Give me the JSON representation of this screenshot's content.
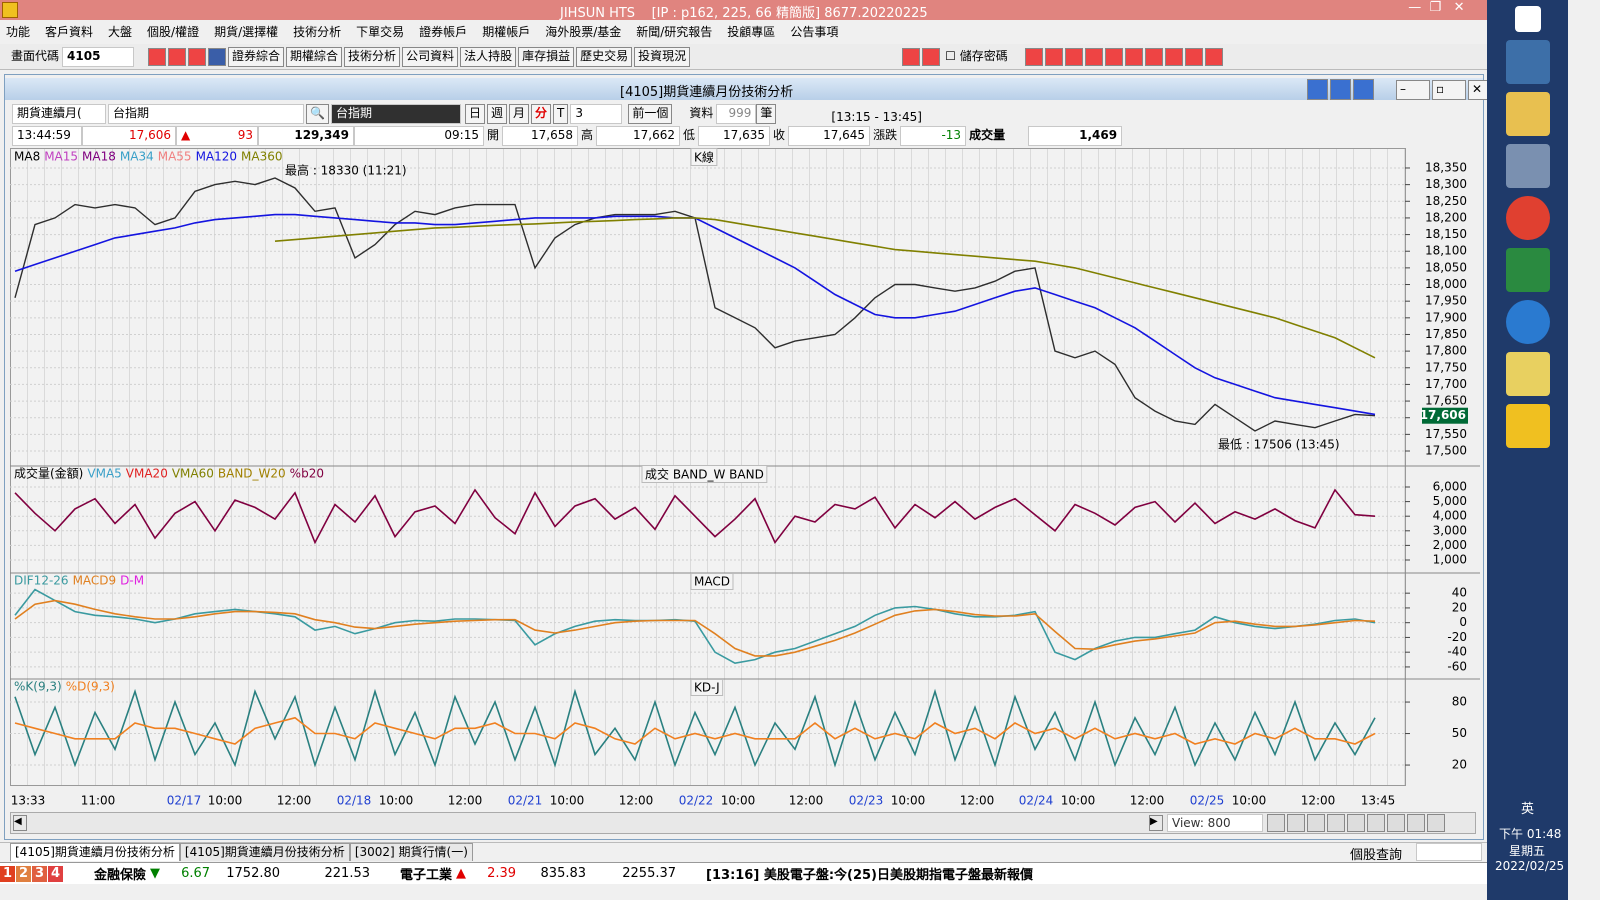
{
  "window": {
    "title": "JIHSUN HTS",
    "info": "[IP : p162, 225, 66 精簡版] 8677.20220225"
  },
  "menu": [
    "功能",
    "客戶資料",
    "大盤",
    "個股/權證",
    "期貨/選擇權",
    "技術分析",
    "下單交易",
    "證券帳戶",
    "期權帳戶",
    "海外股票/基金",
    "新聞/研究報告",
    "投顧專區",
    "公告事項"
  ],
  "toolbar": {
    "code_label": "畫面代碼",
    "code": "4105",
    "buttons": [
      "證券綜合",
      "期權綜合",
      "技術分析",
      "公司資料",
      "法人持股",
      "庫存損益",
      "歷史交易",
      "投資現況"
    ],
    "save_password": "儲存密碼"
  },
  "panel": {
    "title": "[4105]期貨連續月份技術分析",
    "selector": "期貨連續月(",
    "symbol": "台指期",
    "symbol_name": "台指期",
    "periods": [
      "日",
      "週",
      "月",
      "分",
      "T"
    ],
    "interval": "3",
    "prev": "前一個",
    "data_label": "資料",
    "data_count": "999",
    "data_unit": "筆",
    "range": "[13:15 - 13:45]"
  },
  "quote": {
    "time": "13:44:59",
    "price": "17,606",
    "arrow": "▲",
    "change": "93",
    "volume": "129,349",
    "open_time": "09:15",
    "open_label": "開",
    "open": "17,658",
    "high_label": "高",
    "high": "17,662",
    "low_label": "低",
    "low": "17,635",
    "close_label": "收",
    "close": "17,645",
    "change_label": "漲跌",
    "tick_change": "-13",
    "volume_label": "成交量",
    "tick_volume": "1,469"
  },
  "chart_data": [
    {
      "type": "line",
      "label": "K線",
      "series": [
        {
          "color": "#2e2e2e",
          "values": [
            17960,
            18180,
            18200,
            18240,
            18230,
            18240,
            18230,
            18180,
            18200,
            18280,
            18300,
            18310,
            18300,
            18320,
            18290,
            18220,
            18230,
            18080,
            18120,
            18180,
            18220,
            18210,
            18230,
            18240,
            18240,
            18240,
            18050,
            18140,
            18180,
            18200,
            18210,
            18210,
            18210,
            18220,
            18200,
            17930,
            17900,
            17870,
            17810,
            17830,
            17840,
            17850,
            17900,
            17960,
            18000,
            18000,
            17990,
            17980,
            17990,
            18010,
            18040,
            18050,
            17800,
            17780,
            17800,
            17760,
            17660,
            17620,
            17590,
            17580,
            17640,
            17600,
            17560,
            17590,
            17580,
            17570,
            17590,
            17610,
            17606
          ]
        },
        {
          "name": "MA8",
          "color": "#000000"
        },
        {
          "name": "MA15",
          "color": "#c040c0"
        },
        {
          "name": "MA18",
          "color": "#800080"
        },
        {
          "name": "MA34",
          "color": "#3aa0c8"
        },
        {
          "name": "MA55",
          "color": "#f08080"
        },
        {
          "name": "MA120",
          "color": "#1414e0",
          "values": [
            18040,
            18060,
            18080,
            18100,
            18120,
            18140,
            18150,
            18160,
            18170,
            18185,
            18195,
            18200,
            18205,
            18210,
            18210,
            18205,
            18200,
            18195,
            18190,
            18185,
            18185,
            18180,
            18180,
            18185,
            18190,
            18195,
            18200,
            18200,
            18200,
            18200,
            18205,
            18205,
            18205,
            18200,
            18200,
            18170,
            18140,
            18110,
            18080,
            18050,
            18010,
            17970,
            17940,
            17910,
            17900,
            17900,
            17910,
            17920,
            17940,
            17960,
            17980,
            17990,
            17970,
            17950,
            17930,
            17900,
            17870,
            17830,
            17790,
            17750,
            17720,
            17700,
            17680,
            17660,
            17650,
            17640,
            17630,
            17620,
            17610
          ]
        },
        {
          "name": "MA360",
          "color": "#808000",
          "values": [
            null,
            null,
            null,
            null,
            null,
            null,
            null,
            null,
            null,
            null,
            null,
            null,
            null,
            18130,
            18135,
            18140,
            18145,
            18150,
            18155,
            18160,
            18165,
            18170,
            18172,
            18175,
            18178,
            18180,
            18182,
            18185,
            18188,
            18190,
            18192,
            18195,
            18197,
            18200,
            18200,
            18195,
            18185,
            18175,
            18165,
            18155,
            18145,
            18135,
            18125,
            18115,
            18105,
            18100,
            18095,
            18090,
            18085,
            18080,
            18075,
            18070,
            18060,
            18050,
            18035,
            18020,
            18005,
            17990,
            17975,
            17960,
            17945,
            17930,
            17915,
            17900,
            17880,
            17860,
            17840,
            17810,
            17780
          ]
        }
      ],
      "annotations": [
        "最高 : 18330 (11:21)",
        "最低 : 17506 (13:45)"
      ],
      "last_value": {
        "value": 17606,
        "label": "17,606"
      },
      "ylim": [
        17458,
        18404
      ],
      "yticks": [
        {
          "value": 18350,
          "label": "18,350"
        },
        {
          "value": 18300,
          "label": "18,300"
        },
        {
          "value": 18250,
          "label": "18,250"
        },
        {
          "value": 18200,
          "label": "18,200"
        },
        {
          "value": 18150,
          "label": "18,150"
        },
        {
          "value": 18100,
          "label": "18,100"
        },
        {
          "value": 18050,
          "label": "18,050"
        },
        {
          "value": 18000,
          "label": "18,000"
        },
        {
          "value": 17950,
          "label": "17,950"
        },
        {
          "value": 17900,
          "label": "17,900"
        },
        {
          "value": 17850,
          "label": "17,850"
        },
        {
          "value": 17800,
          "label": "17,800"
        },
        {
          "value": 17750,
          "label": "17,750"
        },
        {
          "value": 17700,
          "label": "17,700"
        },
        {
          "value": 17650,
          "label": "17,650"
        },
        {
          "value": 17600,
          "label": "17,600"
        },
        {
          "value": 17550,
          "label": "17,550"
        },
        {
          "value": 17500,
          "label": "17,500"
        }
      ]
    },
    {
      "type": "line",
      "label": "成交  BAND_W  BAND",
      "series": [
        {
          "name": "成交量(金額)",
          "color": "#000000"
        },
        {
          "name": "VMA5",
          "color": "#3aa0c8"
        },
        {
          "name": "VMA20",
          "color": "#e02020"
        },
        {
          "name": "VMA60",
          "color": "#808000"
        },
        {
          "name": "BAND_W20",
          "color": "#a08000"
        },
        {
          "name": "%b20",
          "color": "#800040",
          "values": [
            5600,
            4200,
            3000,
            4500,
            5200,
            3500,
            4800,
            2500,
            4200,
            5000,
            3000,
            5100,
            4600,
            3800,
            5600,
            2200,
            4800,
            3600,
            5400,
            2600,
            4300,
            4700,
            3500,
            5800,
            3900,
            2800,
            5600,
            3300,
            4700,
            5200,
            3800,
            4600,
            3100,
            5400,
            4000,
            2600,
            3800,
            5200,
            2200,
            4000,
            3600,
            4800,
            4500,
            5300,
            3200,
            4800,
            3900,
            5000,
            3800,
            4600,
            5200,
            4100,
            3000,
            4800,
            4200,
            3400,
            4600,
            5000,
            3600,
            4900,
            3500,
            4300,
            3800,
            4500,
            3700,
            3200,
            5800,
            4100,
            4000
          ]
        }
      ],
      "ylim": [
        178,
        7370
      ],
      "yticks": [
        {
          "value": 6000,
          "label": "6,000"
        },
        {
          "value": 5000,
          "label": "5,000"
        },
        {
          "value": 4000,
          "label": "4,000"
        },
        {
          "value": 3000,
          "label": "3,000"
        },
        {
          "value": 2000,
          "label": "2,000"
        },
        {
          "value": 1000,
          "label": "1,000"
        }
      ]
    },
    {
      "type": "line",
      "label": "MACD",
      "series": [
        {
          "name": "DIF12-26",
          "color": "#3a9aa0",
          "values": [
            10,
            45,
            30,
            15,
            10,
            8,
            5,
            0,
            5,
            12,
            15,
            18,
            15,
            12,
            8,
            -10,
            -5,
            -15,
            -8,
            0,
            3,
            2,
            5,
            5,
            4,
            3,
            -30,
            -15,
            -5,
            2,
            4,
            3,
            3,
            4,
            2,
            -40,
            -55,
            -50,
            -40,
            -35,
            -25,
            -15,
            -5,
            10,
            20,
            22,
            18,
            12,
            8,
            8,
            10,
            15,
            -40,
            -50,
            -35,
            -25,
            -20,
            -20,
            -15,
            -10,
            8,
            0,
            -5,
            -8,
            -5,
            -2,
            3,
            5,
            0
          ]
        },
        {
          "name": "MACD9",
          "color": "#e08020",
          "values": [
            5,
            25,
            30,
            25,
            18,
            12,
            8,
            5,
            5,
            8,
            12,
            15,
            15,
            14,
            12,
            4,
            0,
            -6,
            -8,
            -5,
            -2,
            0,
            2,
            3,
            4,
            4,
            -10,
            -14,
            -10,
            -5,
            0,
            2,
            3,
            3,
            3,
            -15,
            -35,
            -45,
            -45,
            -40,
            -32,
            -24,
            -14,
            -2,
            10,
            16,
            18,
            15,
            11,
            9,
            9,
            12,
            -12,
            -35,
            -36,
            -30,
            -25,
            -22,
            -18,
            -14,
            0,
            2,
            -2,
            -5,
            -5,
            -3,
            0,
            3,
            2
          ]
        },
        {
          "name": "D-M",
          "color": "#e020e0"
        }
      ],
      "ylim": [
        -75,
        66
      ],
      "yticks": [
        40,
        20,
        0,
        -20,
        -40,
        -60
      ]
    },
    {
      "type": "line",
      "label": "KD-J",
      "series": [
        {
          "name": "%K(9,3)",
          "color": "#2a8080",
          "values": [
            85,
            30,
            75,
            20,
            70,
            35,
            90,
            25,
            80,
            30,
            60,
            20,
            90,
            45,
            85,
            20,
            75,
            25,
            90,
            30,
            70,
            20,
            85,
            40,
            80,
            25,
            75,
            20,
            90,
            30,
            55,
            25,
            80,
            20,
            70,
            30,
            75,
            20,
            60,
            35,
            85,
            20,
            80,
            25,
            70,
            30,
            90,
            25,
            75,
            20,
            85,
            35,
            70,
            25,
            80,
            20,
            65,
            30,
            75,
            20,
            60,
            25,
            70,
            30,
            80,
            25,
            60,
            30,
            65
          ]
        },
        {
          "name": "%D(9,3)",
          "color": "#f08020",
          "values": [
            60,
            55,
            50,
            45,
            45,
            45,
            60,
            55,
            55,
            50,
            45,
            40,
            55,
            60,
            65,
            50,
            50,
            45,
            60,
            55,
            50,
            45,
            55,
            55,
            60,
            50,
            50,
            45,
            60,
            55,
            45,
            40,
            55,
            45,
            50,
            45,
            50,
            45,
            45,
            45,
            60,
            45,
            55,
            45,
            50,
            45,
            60,
            50,
            55,
            45,
            60,
            50,
            55,
            45,
            55,
            45,
            50,
            45,
            50,
            40,
            45,
            40,
            50,
            45,
            55,
            45,
            45,
            40,
            50
          ]
        }
      ],
      "ylim": [
        1,
        101
      ],
      "yticks": [
        80,
        50,
        20
      ]
    }
  ],
  "x_labels": [
    "13:33",
    "11:00",
    "02/17",
    "10:00",
    "12:00",
    "02/18",
    "10:00",
    "12:00",
    "02/21",
    "10:00",
    "12:00",
    "02/22",
    "10:00",
    "12:00",
    "02/23",
    "10:00",
    "12:00",
    "02/24",
    "10:00",
    "12:00",
    "02/25",
    "10:00",
    "12:00",
    "13:45"
  ],
  "scroll": {
    "view": "View: 800"
  },
  "tabs": [
    "[4105]期貨連續月份技術分析",
    "[4105]期貨連續月份技術分析",
    "[3002] 期貨行情(一)"
  ],
  "stock_query": "個股查詢",
  "ticker": {
    "pages": [
      "1",
      "2",
      "3",
      "4"
    ],
    "items": [
      {
        "name": "金融保險",
        "arrow": "▼",
        "change": "6.67",
        "index": "1752.80",
        "amount": "221.53"
      },
      {
        "name": "電子工業",
        "arrow": "▲",
        "change": "2.39",
        "index": "835.83",
        "amount": "2255.37"
      }
    ],
    "news": "[13:16] 美股電子盤:今(25)日美股期指電子盤最新報價"
  },
  "taskbar": {
    "ime": "英",
    "time": "下午 01:48",
    "weekday": "星期五",
    "date": "2022/02/25"
  }
}
